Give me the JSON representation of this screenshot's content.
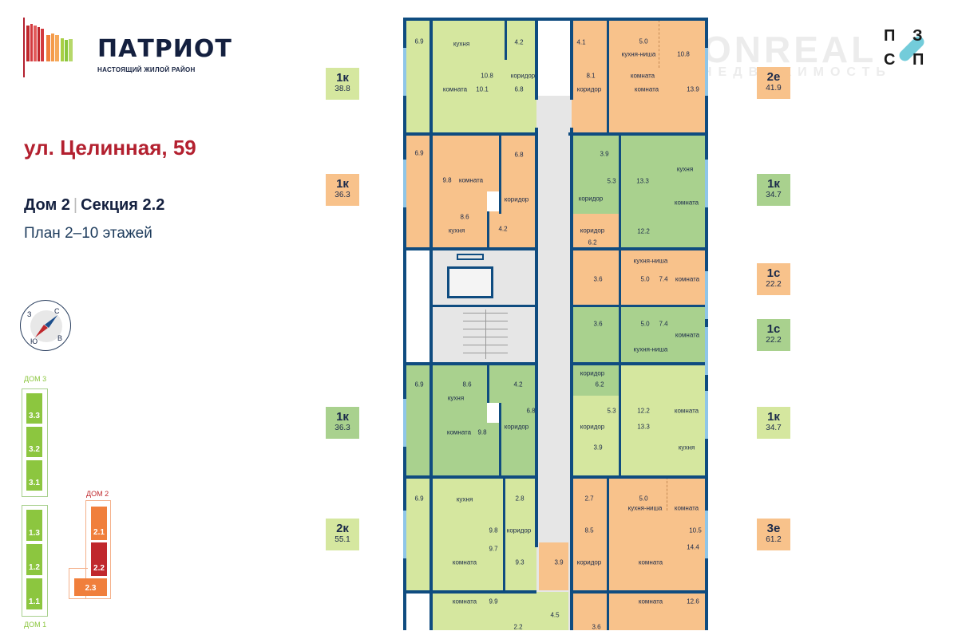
{
  "brand": {
    "name": "ПАТРИОТ",
    "tagline": "НАСТОЯЩИЙ ЖИЛОЙ РАЙОН"
  },
  "address": "ул. Целинная, 59",
  "house": "Дом 2",
  "section": "Секция 2.2",
  "floors": "План 2–10 этажей",
  "watermark": {
    "line1": "ONREAL",
    "line2": "НЕДВИЖИМОСТЬ"
  },
  "developer_logo": {
    "letters": [
      "П",
      "З",
      "С",
      "П"
    ],
    "accent": "#5bc3d4"
  },
  "compass": {
    "north": "С",
    "east": "В",
    "south": "Ю",
    "west": "З"
  },
  "colors": {
    "light": "#d5e79f",
    "green": "#a9d18e",
    "orange": "#f8c28b",
    "common": "#e6e6e6",
    "wall": "#0f4c80",
    "accent_red": "#b3202f"
  },
  "site_map": {
    "houses": [
      {
        "label": "ДОМ 3",
        "sections": [
          "3.3",
          "3.2",
          "3.1"
        ],
        "color": "#8cc63f"
      },
      {
        "label": "ДОМ 1",
        "sections": [
          "1.3",
          "1.2",
          "1.1"
        ],
        "color": "#8cc63f"
      },
      {
        "label": "ДОМ 2",
        "sections": [
          "2.1",
          "2.2",
          "2.3"
        ],
        "color": "#f07f3c",
        "current": "2.2",
        "current_color": "#c0282d"
      }
    ]
  },
  "units": [
    {
      "type": "1к",
      "area": "38.8",
      "color": "light",
      "rooms": [
        {
          "area": "6.9",
          "name": ""
        },
        {
          "area": "10.8",
          "name": "кухня"
        },
        {
          "area": "10.1",
          "name": "комната"
        },
        {
          "area": "4.2",
          "name": ""
        },
        {
          "area": "6.8",
          "name": "коридор"
        }
      ]
    },
    {
      "type": "1к",
      "area": "36.3",
      "color": "orange",
      "rooms": [
        {
          "area": "6.9",
          "name": ""
        },
        {
          "area": "9.8",
          "name": "комната"
        },
        {
          "area": "8.6",
          "name": "кухня"
        },
        {
          "area": "6.8",
          "name": "коридор"
        },
        {
          "area": "4.2",
          "name": ""
        }
      ]
    },
    {
      "type": "1к",
      "area": "36.3",
      "color": "green",
      "rooms": [
        {
          "area": "6.9",
          "name": ""
        },
        {
          "area": "8.6",
          "name": "кухня"
        },
        {
          "area": "4.2",
          "name": ""
        },
        {
          "area": "9.8",
          "name": "комната"
        },
        {
          "area": "6.8",
          "name": "коридор"
        }
      ]
    },
    {
      "type": "2к",
      "area": "55.1",
      "color": "light",
      "rooms": [
        {
          "area": "6.9",
          "name": ""
        },
        {
          "area": "9.8",
          "name": "кухня"
        },
        {
          "area": "2.8",
          "name": ""
        },
        {
          "area": "9.7",
          "name": "комната"
        },
        {
          "area": "9.3",
          "name": "коридор"
        },
        {
          "area": "9.9",
          "name": "комната"
        },
        {
          "area": "2.2",
          "name": ""
        },
        {
          "area": "4.5",
          "name": ""
        }
      ]
    },
    {
      "type": "2е",
      "area": "41.9",
      "color": "orange",
      "rooms": [
        {
          "area": "4.1",
          "name": ""
        },
        {
          "area": "5.0",
          "name": "кухня-ниша"
        },
        {
          "area": "10.8",
          "name": "комната"
        },
        {
          "area": "8.1",
          "name": "коридор"
        },
        {
          "area": "13.9",
          "name": "комната"
        }
      ]
    },
    {
      "type": "1к",
      "area": "34.7",
      "color": "green",
      "rooms": [
        {
          "area": "3.9",
          "name": ""
        },
        {
          "area": "5.3",
          "name": "коридор"
        },
        {
          "area": "13.3",
          "name": "кухня"
        },
        {
          "area": "12.2",
          "name": "комната"
        }
      ]
    },
    {
      "type": "1с",
      "area": "22.2",
      "color": "orange",
      "rooms": [
        {
          "area": "6.2",
          "name": "коридор"
        },
        {
          "area": "3.6",
          "name": ""
        },
        {
          "area": "5.0",
          "name": "кухня-ниша"
        },
        {
          "area": "7.4",
          "name": "комната"
        }
      ]
    },
    {
      "type": "1с",
      "area": "22.2",
      "color": "green",
      "rooms": [
        {
          "area": "3.6",
          "name": ""
        },
        {
          "area": "5.0",
          "name": "кухня-ниша"
        },
        {
          "area": "7.4",
          "name": "комната"
        },
        {
          "area": "6.2",
          "name": "коридор"
        }
      ]
    },
    {
      "type": "1к",
      "area": "34.7",
      "color": "light",
      "rooms": [
        {
          "area": "5.3",
          "name": "коридор"
        },
        {
          "area": "3.9",
          "name": ""
        },
        {
          "area": "12.2",
          "name": "комната"
        },
        {
          "area": "13.3",
          "name": "кухня"
        }
      ]
    },
    {
      "type": "3е",
      "area": "61.2",
      "color": "orange",
      "rooms": [
        {
          "area": "2.7",
          "name": ""
        },
        {
          "area": "5.0",
          "name": "кухня-ниша"
        },
        {
          "area": "10.5",
          "name": "комната"
        },
        {
          "area": "8.5",
          "name": "коридор"
        },
        {
          "area": "3.9",
          "name": ""
        },
        {
          "area": "14.4",
          "name": "комната"
        },
        {
          "area": "12.6",
          "name": "комната"
        },
        {
          "area": "3.6",
          "name": ""
        }
      ]
    }
  ]
}
